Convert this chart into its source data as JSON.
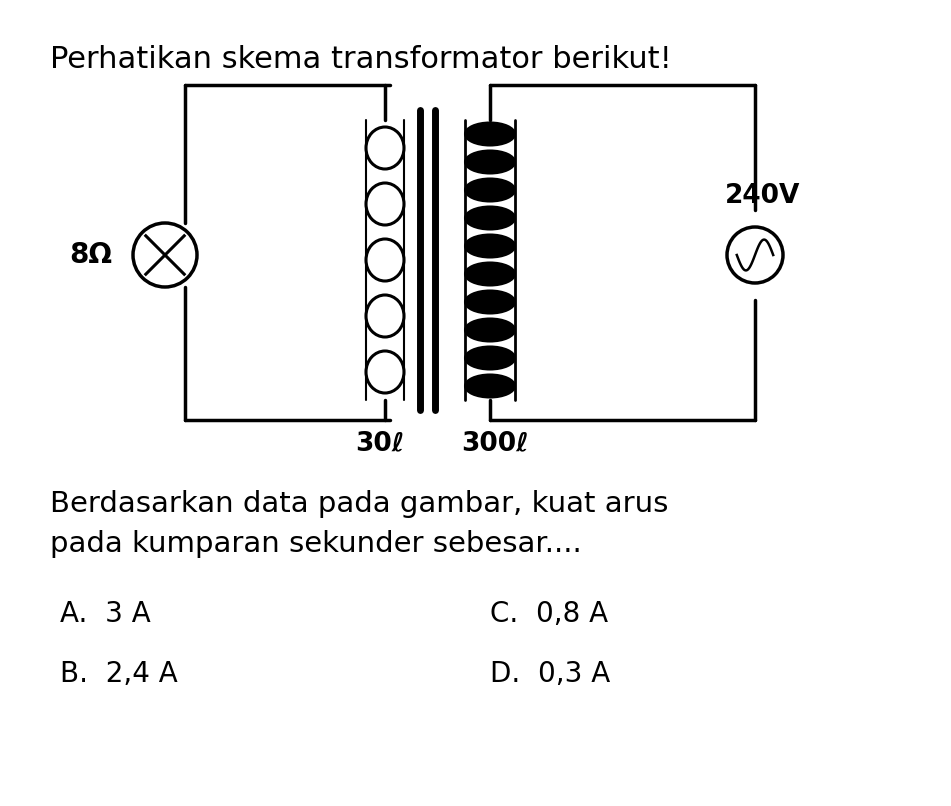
{
  "title": "Perhatikan skema transformator berikut!",
  "title_fontsize": 22,
  "question_line1": "Berdasarkan data pada gambar, kuat arus",
  "question_line2": "pada kumparan sekunder sebesar....",
  "answer_A": "A.  3 A",
  "answer_B": "B.  2,4 A",
  "answer_C": "C.  0,8 A",
  "answer_D": "D.  0,3 A",
  "answer_fontsize": 20,
  "question_fontsize": 21,
  "bg_color": "#ffffff",
  "text_color": "#000000",
  "label_30l": "30ℓ",
  "label_300l": "300ℓ",
  "label_8ohm": "8Ω",
  "label_240v": "240V"
}
